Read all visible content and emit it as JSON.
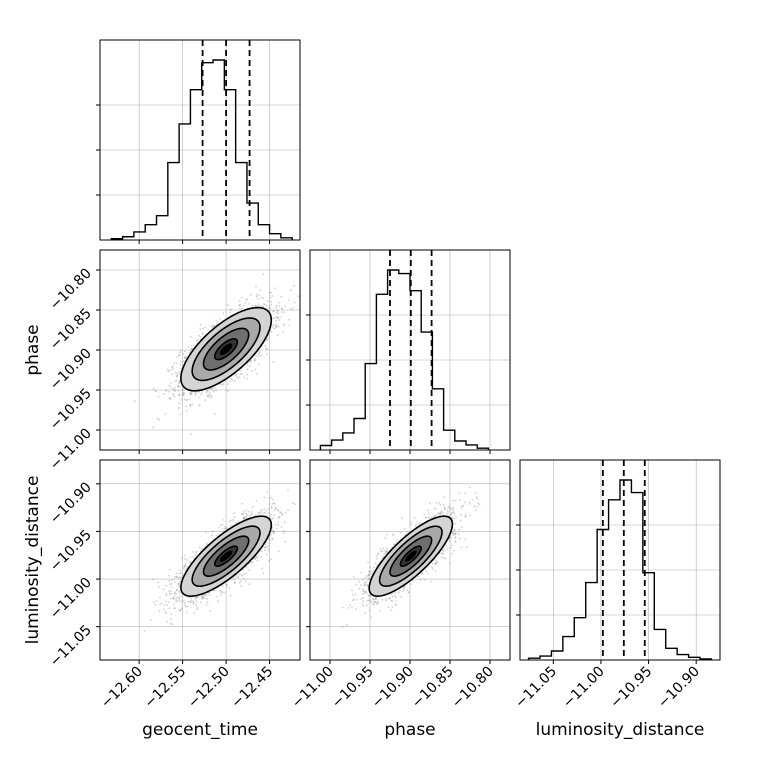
{
  "chart_data": {
    "type": "corner",
    "parameters": [
      "geocent_time",
      "phase",
      "luminosity_distance"
    ],
    "axis_labels": {
      "x": [
        "geocent_time",
        "phase",
        "luminosity_distance"
      ],
      "y": [
        "phase",
        "luminosity_distance"
      ]
    },
    "ranges": {
      "geocent_time": [
        -12.645,
        -12.415
      ],
      "phase": [
        -11.025,
        -10.775
      ],
      "luminosity_distance": [
        -11.085,
        -10.875
      ]
    },
    "ticks": {
      "geocent_time": [
        -12.6,
        -12.55,
        -12.5,
        -12.45
      ],
      "phase": [
        -11.0,
        -10.95,
        -10.9,
        -10.85,
        -10.8
      ],
      "luminosity_distance": [
        -11.05,
        -11.0,
        -10.95,
        -10.9
      ]
    },
    "tick_labels": {
      "geocent_time": [
        "−12.60",
        "−12.55",
        "−12.50",
        "−12.45"
      ],
      "phase": [
        "−11.00",
        "−10.95",
        "−10.90",
        "−10.85",
        "−10.80"
      ],
      "luminosity_distance": [
        "−11.05",
        "−11.00",
        "−10.95",
        "−10.90"
      ]
    },
    "quantiles": {
      "geocent_time": [
        -12.527,
        -12.5,
        -12.473
      ],
      "phase": [
        -10.925,
        -10.899,
        -10.873
      ],
      "luminosity_distance": [
        -10.998,
        -10.976,
        -10.954
      ]
    },
    "histograms": {
      "geocent_time": {
        "bin_edges": [
          -12.632,
          -12.619,
          -12.606,
          -12.593,
          -12.58,
          -12.567,
          -12.554,
          -12.541,
          -12.528,
          -12.515,
          -12.502,
          -12.489,
          -12.476,
          -12.463,
          -12.45,
          -12.437,
          -12.424
        ],
        "counts": [
          0.007,
          0.018,
          0.045,
          0.085,
          0.135,
          0.43,
          0.645,
          0.835,
          0.985,
          1.0,
          0.835,
          0.43,
          0.205,
          0.085,
          0.035,
          0.012
        ]
      },
      "phase": {
        "bin_edges": [
          -11.012,
          -10.998,
          -10.984,
          -10.97,
          -10.956,
          -10.942,
          -10.928,
          -10.914,
          -10.9,
          -10.886,
          -10.872,
          -10.858,
          -10.844,
          -10.83,
          -10.816,
          -10.802
        ],
        "counts": [
          0.025,
          0.055,
          0.095,
          0.175,
          0.48,
          0.865,
          1.0,
          0.98,
          0.885,
          0.655,
          0.34,
          0.11,
          0.05,
          0.028,
          0.01
        ]
      },
      "luminosity_distance": {
        "bin_edges": [
          -11.076,
          -11.064,
          -11.052,
          -11.04,
          -11.028,
          -11.016,
          -11.004,
          -10.992,
          -10.98,
          -10.968,
          -10.956,
          -10.944,
          -10.932,
          -10.92,
          -10.908,
          -10.896,
          -10.884
        ],
        "counts": [
          0.01,
          0.022,
          0.05,
          0.13,
          0.235,
          0.43,
          0.725,
          0.89,
          1.0,
          0.93,
          0.485,
          0.17,
          0.065,
          0.03,
          0.015,
          0.006
        ]
      }
    },
    "pairs": [
      {
        "x": "geocent_time",
        "y": "phase",
        "mean": [
          -12.5,
          -10.899
        ],
        "sd": [
          0.026,
          0.026
        ],
        "rho": 0.7
      },
      {
        "x": "geocent_time",
        "y": "luminosity_distance",
        "mean": [
          -12.5,
          -10.976
        ],
        "sd": [
          0.026,
          0.021
        ],
        "rho": 0.78
      },
      {
        "x": "phase",
        "y": "luminosity_distance",
        "mean": [
          -10.899,
          -10.976
        ],
        "sd": [
          0.026,
          0.021
        ],
        "rho": 0.8
      }
    ],
    "contour_levels_sigma": [
      0.5,
      1.0,
      1.5,
      2.0
    ],
    "grid": true,
    "colors": {
      "line": "#000000",
      "grid": "#b0b0b0",
      "samples": "#9a9a9a"
    }
  }
}
